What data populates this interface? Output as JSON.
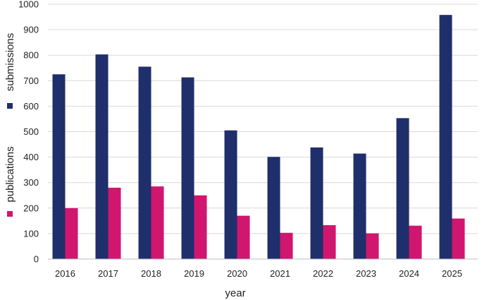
{
  "chart_data": {
    "type": "bar",
    "title": "",
    "xlabel": "year",
    "ylim": [
      0,
      1000
    ],
    "yticks": [
      0,
      100,
      200,
      300,
      400,
      500,
      600,
      700,
      800,
      900,
      1000
    ],
    "grid": true,
    "legend_placement": "left, vertical along y-axis",
    "categories": [
      "2016",
      "2017",
      "2018",
      "2019",
      "2020",
      "2021",
      "2022",
      "2023",
      "2024",
      "2025"
    ],
    "series": [
      {
        "name": "submissions",
        "color": "#1f2f6b",
        "values": [
          725,
          803,
          755,
          713,
          505,
          401,
          438,
          414,
          553,
          958
        ]
      },
      {
        "name": "publications",
        "color": "#d1166f",
        "values": [
          200,
          280,
          285,
          250,
          170,
          103,
          133,
          101,
          131,
          159
        ]
      }
    ]
  }
}
